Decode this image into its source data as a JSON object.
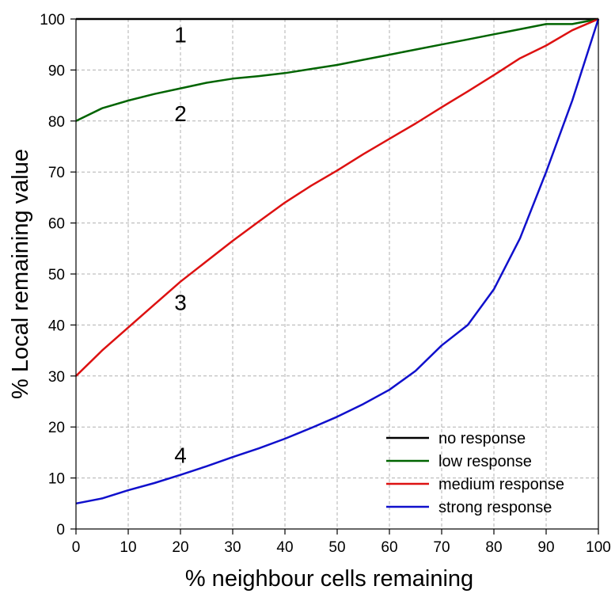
{
  "chart_data": {
    "type": "line",
    "xlabel": "% neighbour cells remaining",
    "ylabel": "% Local remaining value",
    "xlim": [
      0,
      100
    ],
    "ylim": [
      0,
      100
    ],
    "xticks": [
      0,
      10,
      20,
      30,
      40,
      50,
      60,
      70,
      80,
      90,
      100
    ],
    "yticks": [
      0,
      10,
      20,
      30,
      40,
      50,
      60,
      70,
      80,
      90,
      100
    ],
    "grid": true,
    "legend_position": "bottom-right",
    "series": [
      {
        "name": "no response",
        "color": "#000000",
        "label": "1",
        "x": [
          0,
          100
        ],
        "y": [
          100,
          100
        ]
      },
      {
        "name": "low response",
        "color": "#006400",
        "label": "2",
        "x": [
          0,
          5,
          10,
          15,
          20,
          25,
          30,
          35,
          40,
          45,
          50,
          55,
          60,
          65,
          70,
          75,
          80,
          85,
          90,
          95,
          100
        ],
        "y": [
          80,
          82.5,
          84,
          85.3,
          86.4,
          87.5,
          88.3,
          88.8,
          89.4,
          90.2,
          91,
          92,
          93,
          94,
          95,
          96,
          97,
          98,
          99,
          99,
          100
        ]
      },
      {
        "name": "medium response",
        "color": "#dd1111",
        "label": "3",
        "x": [
          0,
          5,
          10,
          15,
          20,
          25,
          30,
          35,
          40,
          45,
          50,
          55,
          60,
          65,
          70,
          75,
          80,
          85,
          90,
          95,
          100
        ],
        "y": [
          30,
          35,
          39.5,
          44,
          48.5,
          52.5,
          56.5,
          60.3,
          64,
          67.3,
          70.3,
          73.5,
          76.5,
          79.5,
          82.7,
          85.8,
          89,
          92.3,
          94.8,
          97.8,
          100
        ]
      },
      {
        "name": "strong response",
        "color": "#1010cc",
        "label": "4",
        "x": [
          0,
          5,
          10,
          15,
          20,
          25,
          30,
          35,
          40,
          45,
          50,
          55,
          60,
          65,
          70,
          75,
          80,
          85,
          90,
          95,
          100
        ],
        "y": [
          5,
          6,
          7.6,
          9,
          10.6,
          12.3,
          14.1,
          15.8,
          17.7,
          19.8,
          22,
          24.5,
          27.3,
          31,
          36,
          40,
          47,
          57,
          70,
          84,
          100
        ]
      }
    ],
    "curve_labels": [
      {
        "text": "1",
        "x": 20,
        "y": 97
      },
      {
        "text": "2",
        "x": 20,
        "y": 81.5
      },
      {
        "text": "3",
        "x": 20,
        "y": 44.5
      },
      {
        "text": "4",
        "x": 20,
        "y": 14.5
      }
    ]
  }
}
